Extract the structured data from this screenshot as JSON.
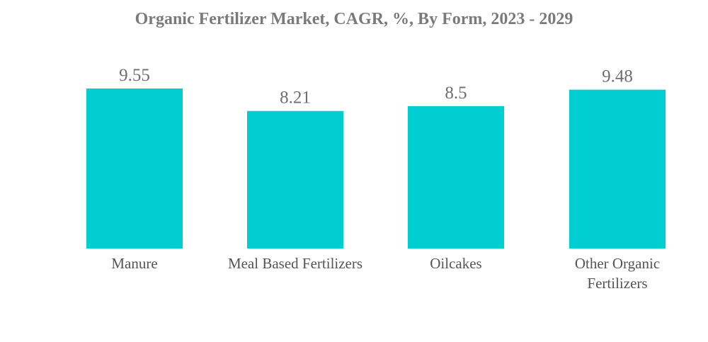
{
  "chart_data": {
    "type": "bar",
    "title": "Organic Fertilizer Market, CAGR, %, By Form, 2023 - 2029",
    "categories": [
      [
        "Manure"
      ],
      [
        "Meal Based Fertilizers"
      ],
      [
        "Oilcakes"
      ],
      [
        "Other Organic",
        "Fertilizers"
      ]
    ],
    "values": [
      9.55,
      8.21,
      8.5,
      9.48
    ],
    "value_labels": [
      "9.55",
      "8.21",
      "8.5",
      "9.48"
    ],
    "xlabel": "",
    "ylabel": "",
    "ylim": [
      0,
      9.55
    ],
    "grid": false,
    "legend": "none",
    "bar_color": "#00CED1"
  }
}
